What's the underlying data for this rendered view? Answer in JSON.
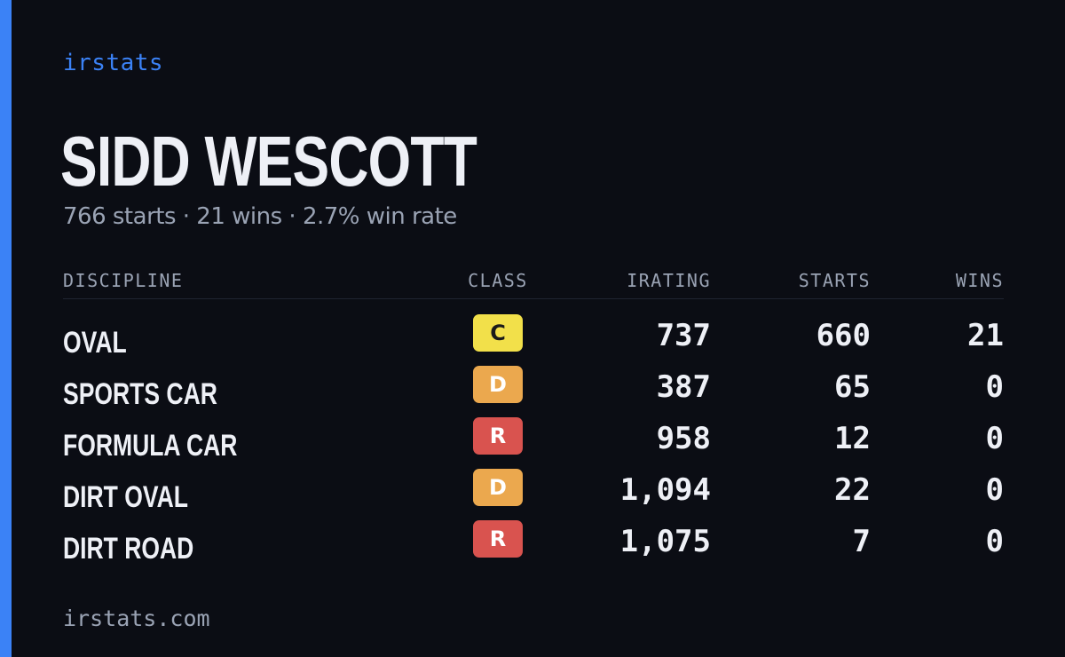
{
  "brand": "irstats",
  "driver": {
    "name": "SIDD WESCOTT",
    "summary": "766 starts · 21 wins · 2.7% win rate"
  },
  "table": {
    "headers": {
      "discipline": "DISCIPLINE",
      "class": "CLASS",
      "irating": "IRATING",
      "starts": "STARTS",
      "wins": "WINS"
    },
    "rows": [
      {
        "discipline": "OVAL",
        "class": "C",
        "class_color": "#f2e04a",
        "class_text_color": "#1a1a1a",
        "irating": "737",
        "starts": "660",
        "wins": "21"
      },
      {
        "discipline": "SPORTS CAR",
        "class": "D",
        "class_color": "#eba84e",
        "class_text_color": "#ffffff",
        "irating": "387",
        "starts": "65",
        "wins": "0"
      },
      {
        "discipline": "FORMULA CAR",
        "class": "R",
        "class_color": "#d9534f",
        "class_text_color": "#ffffff",
        "irating": "958",
        "starts": "12",
        "wins": "0"
      },
      {
        "discipline": "DIRT OVAL",
        "class": "D",
        "class_color": "#eba84e",
        "class_text_color": "#ffffff",
        "irating": "1,094",
        "starts": "22",
        "wins": "0"
      },
      {
        "discipline": "DIRT ROAD",
        "class": "R",
        "class_color": "#d9534f",
        "class_text_color": "#ffffff",
        "irating": "1,075",
        "starts": "7",
        "wins": "0"
      }
    ]
  },
  "footer": "irstats.com",
  "colors": {
    "accent": "#3b82f6",
    "background": "#0b0d14"
  }
}
